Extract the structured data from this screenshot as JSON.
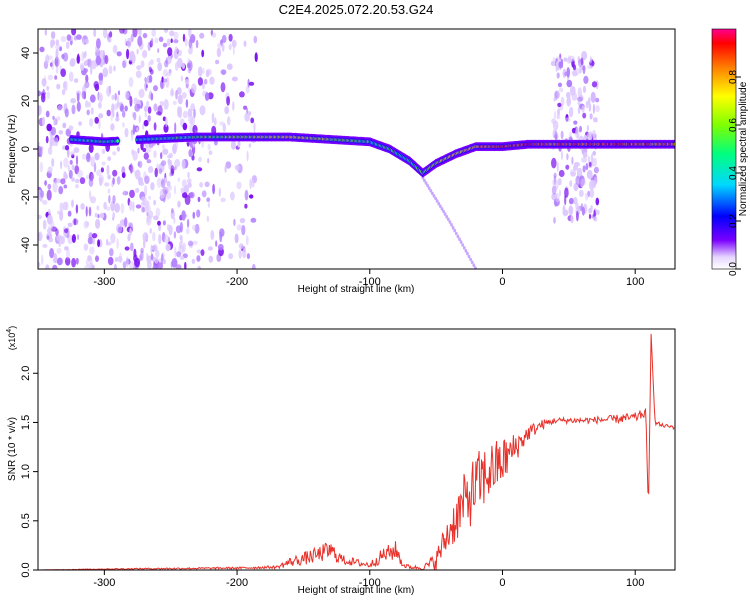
{
  "title": "C2E4.2025.072.20.53.G24",
  "chart_data": [
    {
      "type": "heatmap",
      "xlabel": "Height of straight line (km)",
      "ylabel": "Frequency (Hz)",
      "xlim": [
        -350,
        130
      ],
      "ylim": [
        -50,
        50
      ],
      "x_ticks": [
        -300,
        -200,
        -100,
        0,
        100
      ],
      "y_ticks": [
        -40,
        -20,
        0,
        20,
        40
      ],
      "colorbar": {
        "label": "Normalized spectral amplitude",
        "range": [
          0,
          1
        ],
        "ticks": [
          "0.0",
          "0.2",
          "0.4",
          "0.6",
          "0.8"
        ],
        "tick_values": [
          0.0,
          0.2,
          0.4,
          0.6,
          0.8
        ],
        "colormap": "rainbow"
      },
      "main_ridge": {
        "x": [
          -325,
          -300,
          -270,
          -230,
          -200,
          -160,
          -130,
          -100,
          -85,
          -70,
          -60,
          -50,
          -35,
          -20,
          0,
          20,
          40,
          60,
          80,
          100,
          130
        ],
        "y": [
          4,
          3,
          4,
          5,
          5,
          5,
          4,
          3,
          0,
          -5,
          -10,
          -6,
          -2,
          1,
          1,
          2,
          2,
          2,
          2,
          2,
          2
        ],
        "amplitude": [
          0.45,
          0.5,
          0.4,
          0.55,
          0.6,
          0.7,
          0.6,
          0.5,
          0.55,
          0.5,
          0.55,
          0.65,
          0.75,
          0.8,
          0.9,
          0.9,
          0.85,
          0.85,
          0.9,
          0.85,
          0.8
        ]
      },
      "faint_branch": {
        "x": [
          -60,
          -40,
          -20
        ],
        "y": [
          -12,
          -30,
          -50
        ]
      },
      "noise_bands": [
        {
          "x_start": -350,
          "x_end": -230,
          "density": "high"
        },
        {
          "x_start": -230,
          "x_end": -185,
          "density": "medium"
        },
        {
          "x_start": 38,
          "x_end": 72,
          "density": "high",
          "y_range": [
            -30,
            40
          ]
        }
      ]
    },
    {
      "type": "line",
      "xlabel": "Height of straight line (km)",
      "ylabel": "SNR (10 * v/v)",
      "y_multiplier": "(x10",
      "y_multiplier_exp": "4",
      "y_multiplier_close": ")",
      "xlim": [
        -350,
        130
      ],
      "ylim": [
        0,
        2.45
      ],
      "x_ticks": [
        -300,
        -200,
        -100,
        0,
        100
      ],
      "y_ticks": [
        "0.0",
        "0.5",
        "1.0",
        "1.5",
        "2.0"
      ],
      "y_tick_values": [
        0.0,
        0.5,
        1.0,
        1.5,
        2.0
      ],
      "color": "#e8312a",
      "series": [
        {
          "x": [
            -350,
            -300,
            -250,
            -200,
            -170,
            -160,
            -140,
            -130,
            -120,
            -100,
            -90,
            -80,
            -75,
            -70,
            -60,
            -50,
            -40,
            -30,
            -20,
            -10,
            0,
            10,
            20,
            30,
            40,
            60,
            80,
            100,
            108,
            110,
            112,
            115,
            120,
            130
          ],
          "y": [
            0.0,
            0.01,
            0.015,
            0.02,
            0.03,
            0.08,
            0.15,
            0.2,
            0.1,
            0.05,
            0.15,
            0.2,
            0.05,
            0.03,
            0.02,
            0.1,
            0.4,
            0.65,
            0.85,
            1.0,
            1.1,
            1.25,
            1.4,
            1.48,
            1.52,
            1.52,
            1.53,
            1.55,
            1.6,
            0.6,
            2.4,
            1.5,
            1.47,
            1.45
          ],
          "noise": [
            0.0,
            0.005,
            0.008,
            0.01,
            0.015,
            0.05,
            0.08,
            0.1,
            0.05,
            0.03,
            0.08,
            0.1,
            0.03,
            0.02,
            0.02,
            0.1,
            0.2,
            0.3,
            0.35,
            0.3,
            0.25,
            0.15,
            0.08,
            0.05,
            0.03,
            0.03,
            0.04,
            0.05,
            0.05,
            0.0,
            0.0,
            0.03,
            0.02,
            0.02
          ]
        }
      ]
    }
  ]
}
